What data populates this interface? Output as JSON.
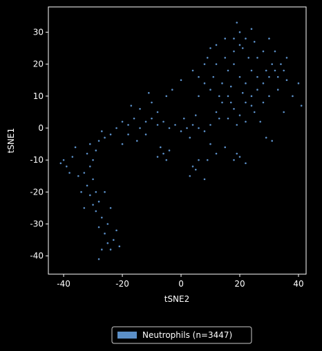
{
  "chart_data": {
    "type": "scatter",
    "xlabel": "tSNE2",
    "ylabel": "tSNE1",
    "xlim": [
      -45.2,
      42.6
    ],
    "ylim": [
      -45.7,
      37.9
    ],
    "xticks": [
      -40,
      -20,
      0,
      20,
      40
    ],
    "yticks": [
      -40,
      -30,
      -20,
      -10,
      0,
      10,
      20,
      30
    ],
    "legend": "lower center",
    "series": [
      {
        "name": "Neutrophils (n=3447)",
        "color": "#5b8fc7",
        "x": [
          -28,
          -27,
          -25,
          -24,
          -23,
          -26,
          -28,
          -25,
          -27,
          -29,
          -30,
          -28,
          -31,
          -29,
          -32,
          -30,
          -33,
          -31,
          -30,
          -32,
          -29,
          -31,
          -28,
          -26,
          -27,
          -24,
          -22,
          -26,
          -24,
          -22,
          -21,
          -33,
          -35,
          -34,
          -40,
          -39,
          -37,
          -38,
          -41,
          -36,
          -20,
          -18,
          -16,
          -14,
          -12,
          -10,
          -8,
          -6,
          -4,
          -2,
          -15,
          -12,
          -18,
          -20,
          -14,
          -10,
          -8,
          -17,
          -11,
          0,
          2,
          4,
          6,
          3,
          1,
          5,
          8,
          10,
          -3,
          -5,
          0,
          -6,
          -5,
          -7,
          -4,
          -8,
          4,
          5,
          6,
          3,
          8,
          9,
          12,
          18,
          20,
          22,
          19,
          15,
          10,
          12,
          14,
          16,
          18,
          20,
          22,
          24,
          26,
          28,
          30,
          32,
          34,
          36,
          33,
          30,
          28,
          25,
          22,
          19,
          16,
          14,
          16,
          18,
          15,
          12,
          20,
          22,
          24,
          26,
          28,
          20,
          18,
          20,
          22,
          24,
          19,
          21,
          23,
          10,
          8,
          6,
          12,
          9,
          17,
          13,
          27,
          29,
          31,
          35,
          38,
          41,
          40,
          36,
          32,
          30,
          25,
          10,
          8,
          15,
          18,
          26,
          31,
          33,
          35,
          29,
          24,
          21,
          17,
          13,
          11,
          6,
          4
        ],
        "y": [
          -41,
          -38,
          -36,
          -38,
          -35,
          -33,
          -31,
          -30,
          -28,
          -26,
          -24,
          -23,
          -21,
          -20,
          -18,
          -16,
          -14,
          -12,
          -10,
          -8,
          -7,
          -5,
          -4,
          -3,
          -1,
          -2,
          0,
          -20,
          -25,
          -32,
          -37,
          -25,
          -15,
          -20,
          -10,
          -12,
          -9,
          -14,
          -11,
          -6,
          2,
          1,
          3,
          0,
          2,
          3,
          1,
          2,
          0,
          1,
          -4,
          -2,
          -2,
          -5,
          6,
          8,
          5,
          7,
          11,
          -1,
          0,
          1,
          0,
          -3,
          3,
          4,
          -1,
          1,
          12,
          10,
          15,
          -8,
          -10,
          -6,
          -7,
          -9,
          -12,
          -13,
          -10,
          -15,
          -16,
          -10,
          -8,
          -10,
          -9,
          -11,
          -8,
          -6,
          -5,
          5,
          8,
          10,
          6,
          4,
          8,
          10,
          12,
          14,
          16,
          18,
          20,
          15,
          12,
          10,
          8,
          5,
          2,
          1,
          3,
          14,
          18,
          20,
          22,
          20,
          16,
          14,
          18,
          22,
          24,
          26,
          28,
          30,
          28,
          31,
          33,
          25,
          22,
          12,
          14,
          16,
          26,
          22,
          13,
          3,
          2,
          -3,
          -4,
          5,
          10,
          7,
          14,
          22,
          24,
          28,
          27,
          25,
          20,
          28,
          24,
          16,
          20,
          16,
          18,
          18,
          7,
          11,
          8,
          10,
          16,
          10,
          18
        ]
      }
    ]
  }
}
